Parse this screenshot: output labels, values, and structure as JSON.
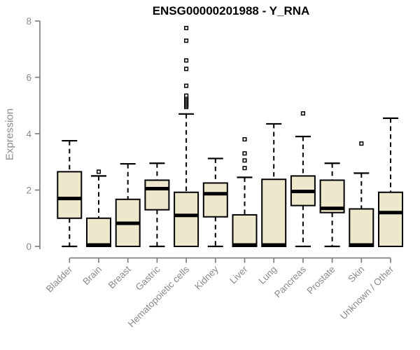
{
  "chart_data": {
    "type": "boxplot",
    "title": "ENSG00000201988 - Y_RNA",
    "ylabel": "Expression",
    "xlabel": "",
    "ylim": [
      0,
      8
    ],
    "yticks": [
      0,
      2,
      4,
      6,
      8
    ],
    "grid": false,
    "legend": "none",
    "colors": {
      "box_fill": "#ede8cc",
      "box_stroke": "#000000",
      "median": "#000000",
      "whisker": "#000000",
      "axis_line": "#808080",
      "tick_label": "#8a8a8a",
      "title": "#000000",
      "outlier_fill": "#ffffff"
    },
    "categories": [
      "Bladder",
      "Brain",
      "Breast",
      "Gastric",
      "Hematopoietic cells",
      "Kidney",
      "Liver",
      "Lung",
      "Pancreas",
      "Prostate",
      "Skin",
      "Unknown / Other"
    ],
    "series": [
      {
        "name": "Bladder",
        "lo": 0,
        "q1": 1.0,
        "med": 1.7,
        "q3": 2.65,
        "hi": 3.75,
        "outliers": []
      },
      {
        "name": "Brain",
        "lo": 0,
        "q1": 0,
        "med": 0.05,
        "q3": 1.0,
        "hi": 2.5,
        "outliers": [
          2.65
        ]
      },
      {
        "name": "Breast",
        "lo": 0,
        "q1": 0,
        "med": 0.82,
        "q3": 1.67,
        "hi": 2.93,
        "outliers": []
      },
      {
        "name": "Gastric",
        "lo": 0,
        "q1": 1.3,
        "med": 2.05,
        "q3": 2.35,
        "hi": 2.95,
        "outliers": []
      },
      {
        "name": "Hematopoietic cells",
        "lo": 0,
        "q1": 0,
        "med": 1.1,
        "q3": 1.92,
        "hi": 4.7,
        "outliers": [
          4.95,
          5.0,
          5.05,
          5.1,
          5.15,
          5.2,
          5.25,
          5.3,
          5.35,
          5.7,
          6.3,
          6.6,
          7.3,
          7.75
        ]
      },
      {
        "name": "Kidney",
        "lo": 0,
        "q1": 1.05,
        "med": 1.87,
        "q3": 2.25,
        "hi": 3.12,
        "outliers": []
      },
      {
        "name": "Liver",
        "lo": 0,
        "q1": 0,
        "med": 0.05,
        "q3": 1.12,
        "hi": 2.45,
        "outliers": [
          2.78,
          3.05,
          3.3,
          3.8
        ]
      },
      {
        "name": "Lung",
        "lo": 0,
        "q1": 0,
        "med": 0.05,
        "q3": 2.38,
        "hi": 4.35,
        "outliers": []
      },
      {
        "name": "Pancreas",
        "lo": 0,
        "q1": 1.45,
        "med": 1.95,
        "q3": 2.5,
        "hi": 3.9,
        "outliers": [
          4.72
        ]
      },
      {
        "name": "Prostate",
        "lo": 0,
        "q1": 1.2,
        "med": 1.35,
        "q3": 2.35,
        "hi": 2.95,
        "outliers": []
      },
      {
        "name": "Skin",
        "lo": 0,
        "q1": 0,
        "med": 0.05,
        "q3": 1.33,
        "hi": 2.6,
        "outliers": [
          3.65
        ]
      },
      {
        "name": "Unknown / Other",
        "lo": 0,
        "q1": 0,
        "med": 1.2,
        "q3": 1.92,
        "hi": 4.55,
        "outliers": []
      }
    ]
  }
}
